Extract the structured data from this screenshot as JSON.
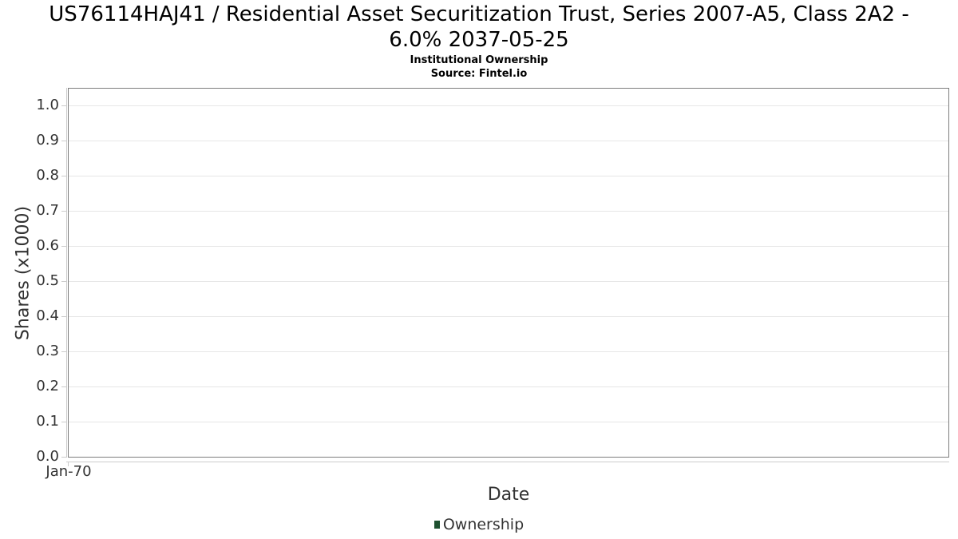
{
  "header": {
    "title_line1": "US76114HAJ41 / Residential Asset Securitization Trust, Series 2007-A5, Class 2A2 -",
    "title_line2": "6.0% 2037-05-25",
    "subtitle": "Institutional Ownership",
    "source": "Source: Fintel.io"
  },
  "chart_data": {
    "type": "bar",
    "title": "US76114HAJ41 / Residential Asset Securitization Trust, Series 2007-A5, Class 2A2 - 6.0% 2037-05-25",
    "subtitle": "Institutional Ownership",
    "source": "Source: Fintel.io",
    "xlabel": "Date",
    "ylabel": "Shares (x1000)",
    "categories": [],
    "series": [
      {
        "name": "Ownership",
        "color": "#1e5130",
        "values": []
      }
    ],
    "x_tick_labels": [
      "Jan-70"
    ],
    "y_ticks": [
      0.0,
      0.1,
      0.2,
      0.3,
      0.4,
      0.5,
      0.6,
      0.7,
      0.8,
      0.9,
      1.0
    ],
    "y_tick_labels": [
      "0.0",
      "0.1",
      "0.2",
      "0.3",
      "0.4",
      "0.5",
      "0.6",
      "0.7",
      "0.8",
      "0.9",
      "1.0"
    ],
    "ylim": [
      0.0,
      1.05
    ],
    "grid": "horizontal-only",
    "legend_position": "bottom-center"
  },
  "colors": {
    "background": "#ffffff",
    "plot_border": "#7d7d7d",
    "gridline": "#e6e6e6",
    "axis_line": "#cccccc",
    "tick_text": "#333333",
    "title_text": "#000000",
    "legend_marker_green": "#1e5130"
  }
}
